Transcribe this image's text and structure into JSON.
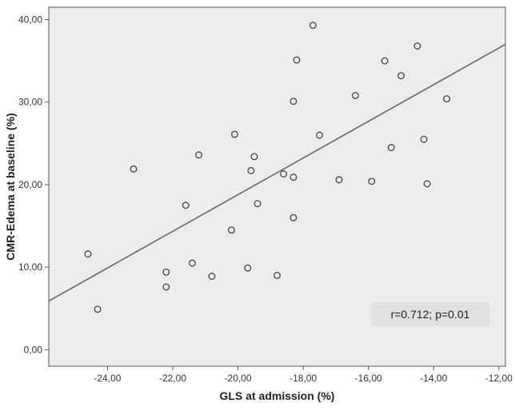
{
  "chart_data": {
    "type": "scatter",
    "title": "",
    "xlabel": "GLS at admission (%)",
    "ylabel": "CMR-Edema at baseline (%)",
    "xlim": [
      -25.8,
      -11.8
    ],
    "ylim": [
      -2.0,
      41.5
    ],
    "x_ticks": [
      -24,
      -22,
      -20,
      -18,
      -16,
      -14,
      -12
    ],
    "x_tick_labels": [
      "-24,00",
      "-22,00",
      "-20,00",
      "-18,00",
      "-16,00",
      "-14,00",
      "-12,00"
    ],
    "y_ticks": [
      0,
      10,
      20,
      30,
      40
    ],
    "y_tick_labels": [
      "0,00",
      "10,00",
      "20,00",
      "30,00",
      "40,00"
    ],
    "grid": false,
    "colors": {
      "plot_background": "#ececec",
      "marker_edge": "#444444",
      "fit_line": "#666666",
      "annotation_bg": "#e0e0e0"
    },
    "annotation": "r=0.712; p=0.01",
    "fit_line": {
      "x": [
        -25.8,
        -11.8
      ],
      "y": [
        5.9,
        37.0
      ]
    },
    "points": [
      {
        "x": -24.6,
        "y": 11.6
      },
      {
        "x": -24.3,
        "y": 4.9
      },
      {
        "x": -23.2,
        "y": 21.9
      },
      {
        "x": -22.2,
        "y": 9.4
      },
      {
        "x": -22.2,
        "y": 7.6
      },
      {
        "x": -21.6,
        "y": 17.5
      },
      {
        "x": -21.4,
        "y": 10.5
      },
      {
        "x": -21.2,
        "y": 23.6
      },
      {
        "x": -20.8,
        "y": 8.9
      },
      {
        "x": -20.2,
        "y": 14.5
      },
      {
        "x": -20.1,
        "y": 26.1
      },
      {
        "x": -19.7,
        "y": 9.9
      },
      {
        "x": -19.6,
        "y": 21.7
      },
      {
        "x": -19.5,
        "y": 23.4
      },
      {
        "x": -19.4,
        "y": 17.7
      },
      {
        "x": -18.8,
        "y": 9.0
      },
      {
        "x": -18.6,
        "y": 21.3
      },
      {
        "x": -18.3,
        "y": 30.1
      },
      {
        "x": -18.3,
        "y": 20.9
      },
      {
        "x": -18.3,
        "y": 16.0
      },
      {
        "x": -18.2,
        "y": 35.1
      },
      {
        "x": -17.7,
        "y": 39.3
      },
      {
        "x": -17.5,
        "y": 26.0
      },
      {
        "x": -16.9,
        "y": 20.6
      },
      {
        "x": -16.4,
        "y": 30.8
      },
      {
        "x": -15.9,
        "y": 20.4
      },
      {
        "x": -15.5,
        "y": 35.0
      },
      {
        "x": -15.3,
        "y": 24.5
      },
      {
        "x": -15.0,
        "y": 33.2
      },
      {
        "x": -14.5,
        "y": 36.8
      },
      {
        "x": -14.3,
        "y": 25.5
      },
      {
        "x": -14.2,
        "y": 20.1
      },
      {
        "x": -13.6,
        "y": 30.4
      }
    ]
  }
}
